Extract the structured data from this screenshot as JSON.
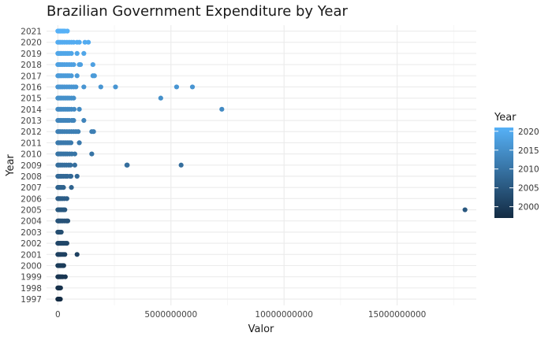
{
  "chart_data": {
    "type": "scatter",
    "title": "Brazilian Government Expenditure by Year",
    "xlabel": "Valor",
    "ylabel": "Year",
    "xlim": [
      -500000000,
      18500000000
    ],
    "x_ticks": [
      0,
      5000000000,
      10000000000,
      15000000000
    ],
    "x_tick_labels": [
      "0",
      "5000000000",
      "10000000000",
      "15000000000"
    ],
    "y_categories": [
      "1997",
      "1998",
      "1999",
      "2000",
      "2001",
      "2002",
      "2003",
      "2004",
      "2005",
      "2006",
      "2007",
      "2008",
      "2009",
      "2010",
      "2011",
      "2012",
      "2013",
      "2014",
      "2015",
      "2016",
      "2017",
      "2018",
      "2019",
      "2020",
      "2021"
    ],
    "grid": true,
    "legend": {
      "title": "Year",
      "position": "right",
      "type": "colorbar",
      "min": 1997,
      "max": 2021,
      "breaks": [
        2000,
        2005,
        2010,
        2015,
        2020
      ],
      "break_labels": [
        "2000",
        "2005",
        "2010",
        "2015",
        "2020"
      ],
      "color_low": "#132b43",
      "color_high": "#56b1f7"
    },
    "series": [
      {
        "year": 1997,
        "values": [
          0,
          20000000,
          40000000,
          60000000,
          80000000,
          110000000
        ]
      },
      {
        "year": 1998,
        "values": [
          0,
          25000000,
          50000000,
          80000000,
          120000000
        ]
      },
      {
        "year": 1999,
        "values": [
          0,
          30000000,
          70000000,
          110000000,
          160000000,
          220000000,
          330000000
        ]
      },
      {
        "year": 2000,
        "values": [
          0,
          30000000,
          70000000,
          110000000,
          160000000,
          210000000,
          260000000
        ]
      },
      {
        "year": 2001,
        "values": [
          0,
          40000000,
          90000000,
          150000000,
          230000000,
          310000000,
          850000000
        ]
      },
      {
        "year": 2002,
        "values": [
          0,
          40000000,
          90000000,
          140000000,
          200000000,
          260000000,
          330000000,
          400000000
        ]
      },
      {
        "year": 2003,
        "values": [
          0,
          30000000,
          60000000,
          100000000,
          150000000
        ]
      },
      {
        "year": 2004,
        "values": [
          0,
          40000000,
          90000000,
          150000000,
          220000000,
          300000000,
          380000000,
          440000000
        ]
      },
      {
        "year": 2005,
        "values": [
          0,
          30000000,
          70000000,
          120000000,
          180000000,
          250000000,
          310000000,
          18000000000
        ]
      },
      {
        "year": 2006,
        "values": [
          0,
          40000000,
          90000000,
          150000000,
          220000000,
          300000000,
          400000000
        ]
      },
      {
        "year": 2007,
        "values": [
          0,
          30000000,
          70000000,
          120000000,
          180000000,
          250000000,
          600000000
        ]
      },
      {
        "year": 2008,
        "values": [
          0,
          50000000,
          110000000,
          180000000,
          260000000,
          350000000,
          420000000,
          540000000,
          580000000,
          850000000
        ]
      },
      {
        "year": 2009,
        "values": [
          0,
          50000000,
          120000000,
          200000000,
          290000000,
          380000000,
          480000000,
          560000000,
          750000000,
          3050000000,
          3070000000,
          5450000000
        ]
      },
      {
        "year": 2010,
        "values": [
          0,
          50000000,
          110000000,
          180000000,
          260000000,
          340000000,
          420000000,
          520000000,
          620000000,
          750000000,
          1500000000
        ]
      },
      {
        "year": 2011,
        "values": [
          0,
          50000000,
          110000000,
          180000000,
          260000000,
          340000000,
          420000000,
          500000000,
          580000000,
          950000000
        ]
      },
      {
        "year": 2012,
        "values": [
          0,
          60000000,
          130000000,
          210000000,
          300000000,
          400000000,
          500000000,
          600000000,
          700000000,
          800000000,
          900000000,
          1500000000,
          1580000000
        ]
      },
      {
        "year": 2013,
        "values": [
          0,
          50000000,
          110000000,
          180000000,
          260000000,
          340000000,
          420000000,
          500000000,
          620000000,
          700000000,
          1150000000
        ]
      },
      {
        "year": 2014,
        "values": [
          0,
          50000000,
          110000000,
          180000000,
          260000000,
          340000000,
          420000000,
          500000000,
          600000000,
          720000000,
          950000000,
          7250000000
        ]
      },
      {
        "year": 2015,
        "values": [
          0,
          50000000,
          110000000,
          180000000,
          260000000,
          340000000,
          420000000,
          500000000,
          600000000,
          700000000,
          4550000000
        ]
      },
      {
        "year": 2016,
        "values": [
          0,
          60000000,
          130000000,
          210000000,
          300000000,
          400000000,
          500000000,
          600000000,
          700000000,
          800000000,
          1150000000,
          1900000000,
          2550000000,
          5250000000,
          5950000000
        ]
      },
      {
        "year": 2017,
        "values": [
          0,
          50000000,
          110000000,
          180000000,
          260000000,
          340000000,
          420000000,
          500000000,
          600000000,
          850000000,
          1550000000,
          1620000000
        ]
      },
      {
        "year": 2018,
        "values": [
          0,
          60000000,
          130000000,
          210000000,
          300000000,
          400000000,
          500000000,
          600000000,
          700000000,
          950000000,
          1000000000,
          1550000000
        ]
      },
      {
        "year": 2019,
        "values": [
          0,
          50000000,
          110000000,
          180000000,
          260000000,
          340000000,
          420000000,
          500000000,
          600000000,
          850000000,
          1150000000
        ]
      },
      {
        "year": 2020,
        "values": [
          0,
          60000000,
          130000000,
          210000000,
          300000000,
          400000000,
          500000000,
          600000000,
          700000000,
          850000000,
          950000000,
          1200000000,
          1350000000
        ]
      },
      {
        "year": 2021,
        "values": [
          0,
          30000000,
          70000000,
          110000000,
          160000000,
          210000000,
          260000000,
          310000000,
          420000000
        ]
      }
    ]
  }
}
